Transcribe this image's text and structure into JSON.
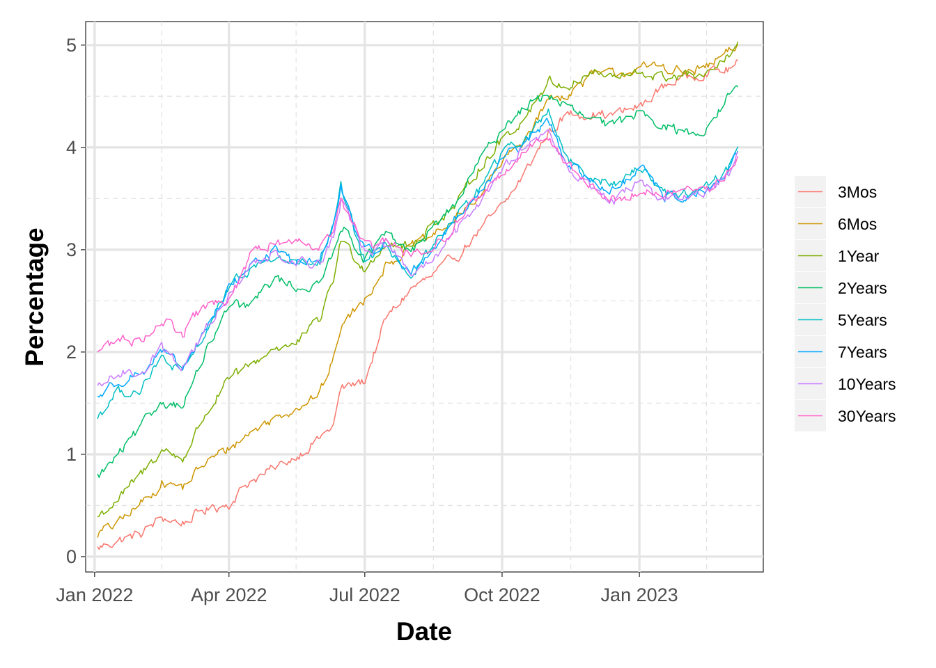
{
  "chart_data": {
    "type": "line",
    "xlabel": "Date",
    "ylabel": "Percentage",
    "x_range": [
      "2021-12-26",
      "2023-03-25"
    ],
    "ylim": [
      -0.15,
      5.23
    ],
    "y_ticks": [
      0,
      1,
      2,
      3,
      4,
      5
    ],
    "x_ticks": [
      {
        "date": "2022-01-01",
        "label": "Jan 2022"
      },
      {
        "date": "2022-04-01",
        "label": "Apr 2022"
      },
      {
        "date": "2022-07-01",
        "label": "Jul 2022"
      },
      {
        "date": "2022-10-01",
        "label": "Oct 2022"
      },
      {
        "date": "2023-01-01",
        "label": "Jan 2023"
      }
    ],
    "x_minor_ticks": [
      "2022-02-15",
      "2022-05-16",
      "2022-08-16",
      "2022-11-16",
      "2023-02-15"
    ],
    "grid": true,
    "legend_position": "right",
    "x_dates": [
      "2022-01-03",
      "2022-01-17",
      "2022-02-01",
      "2022-02-15",
      "2022-03-01",
      "2022-03-15",
      "2022-04-01",
      "2022-04-15",
      "2022-05-02",
      "2022-05-16",
      "2022-06-01",
      "2022-06-10",
      "2022-06-15",
      "2022-07-01",
      "2022-07-15",
      "2022-08-01",
      "2022-08-15",
      "2022-09-01",
      "2022-09-15",
      "2022-10-03",
      "2022-10-14",
      "2022-11-01",
      "2022-11-15",
      "2022-12-01",
      "2022-12-15",
      "2023-01-03",
      "2023-01-17",
      "2023-02-01",
      "2023-02-15",
      "2023-03-01",
      "2023-03-08"
    ],
    "series": [
      {
        "name": "3Mos",
        "color": "#F8766D",
        "values": [
          0.08,
          0.16,
          0.22,
          0.38,
          0.33,
          0.45,
          0.52,
          0.74,
          0.86,
          0.98,
          1.16,
          1.28,
          1.64,
          1.72,
          2.32,
          2.62,
          2.74,
          2.94,
          3.18,
          3.45,
          3.7,
          4.15,
          4.33,
          4.33,
          4.32,
          4.41,
          4.6,
          4.69,
          4.74,
          4.76,
          4.82
        ]
      },
      {
        "name": "6Mos",
        "color": "#CD9600",
        "values": [
          0.22,
          0.33,
          0.52,
          0.72,
          0.68,
          0.9,
          1.06,
          1.21,
          1.36,
          1.46,
          1.6,
          1.92,
          2.25,
          2.52,
          2.85,
          3.02,
          3.13,
          3.31,
          3.52,
          3.89,
          4.04,
          4.47,
          4.53,
          4.71,
          4.72,
          4.77,
          4.8,
          4.72,
          4.78,
          4.92,
          4.97
        ]
      },
      {
        "name": "1Year",
        "color": "#7CAE00",
        "values": [
          0.39,
          0.56,
          0.8,
          1.05,
          0.95,
          1.36,
          1.73,
          1.86,
          2.05,
          2.07,
          2.32,
          2.72,
          3.1,
          2.82,
          3.07,
          3.02,
          3.25,
          3.44,
          3.79,
          4.11,
          4.25,
          4.65,
          4.6,
          4.74,
          4.68,
          4.72,
          4.68,
          4.71,
          4.68,
          4.88,
          4.98
        ]
      },
      {
        "name": "2Years",
        "color": "#00BE67",
        "values": [
          0.78,
          0.99,
          1.26,
          1.52,
          1.48,
          1.94,
          2.44,
          2.45,
          2.73,
          2.63,
          2.65,
          3.02,
          3.24,
          2.92,
          3.14,
          2.97,
          3.21,
          3.46,
          3.85,
          4.22,
          4.37,
          4.52,
          4.38,
          4.25,
          4.21,
          4.38,
          4.21,
          4.14,
          4.18,
          4.48,
          4.62
        ]
      },
      {
        "name": "5Years",
        "color": "#00BFC4",
        "values": [
          1.37,
          1.62,
          1.62,
          1.94,
          1.79,
          2.16,
          2.62,
          2.81,
          2.93,
          2.86,
          2.86,
          3.21,
          3.6,
          2.87,
          3.06,
          2.74,
          3.02,
          3.34,
          3.58,
          3.98,
          4.04,
          4.37,
          3.86,
          3.72,
          3.63,
          3.81,
          3.56,
          3.56,
          3.61,
          3.78,
          4.04
        ]
      },
      {
        "name": "7Years",
        "color": "#00A9FF",
        "values": [
          1.56,
          1.73,
          1.79,
          2.0,
          1.82,
          2.18,
          2.63,
          2.84,
          3.0,
          2.88,
          2.89,
          3.22,
          3.61,
          2.96,
          3.07,
          2.76,
          3.0,
          3.32,
          3.55,
          3.92,
          4.0,
          4.25,
          3.82,
          3.66,
          3.58,
          3.78,
          3.52,
          3.52,
          3.55,
          3.73,
          3.97
        ]
      },
      {
        "name": "10Years",
        "color": "#C77CFF",
        "values": [
          1.63,
          1.79,
          1.81,
          2.05,
          1.86,
          2.18,
          2.55,
          2.82,
          2.99,
          2.88,
          2.88,
          3.15,
          3.48,
          2.98,
          3.05,
          2.77,
          2.87,
          3.2,
          3.45,
          3.85,
          3.98,
          4.15,
          3.77,
          3.6,
          3.48,
          3.67,
          3.48,
          3.51,
          3.55,
          3.7,
          3.92
        ]
      },
      {
        "name": "30Years",
        "color": "#FF61CC",
        "values": [
          2.01,
          2.12,
          2.12,
          2.31,
          2.18,
          2.45,
          2.48,
          2.94,
          3.08,
          3.09,
          3.06,
          3.2,
          3.48,
          3.02,
          3.06,
          2.94,
          2.98,
          3.28,
          3.53,
          3.75,
          3.96,
          4.11,
          3.83,
          3.58,
          3.48,
          3.6,
          3.52,
          3.6,
          3.59,
          3.74,
          3.88
        ]
      }
    ]
  }
}
